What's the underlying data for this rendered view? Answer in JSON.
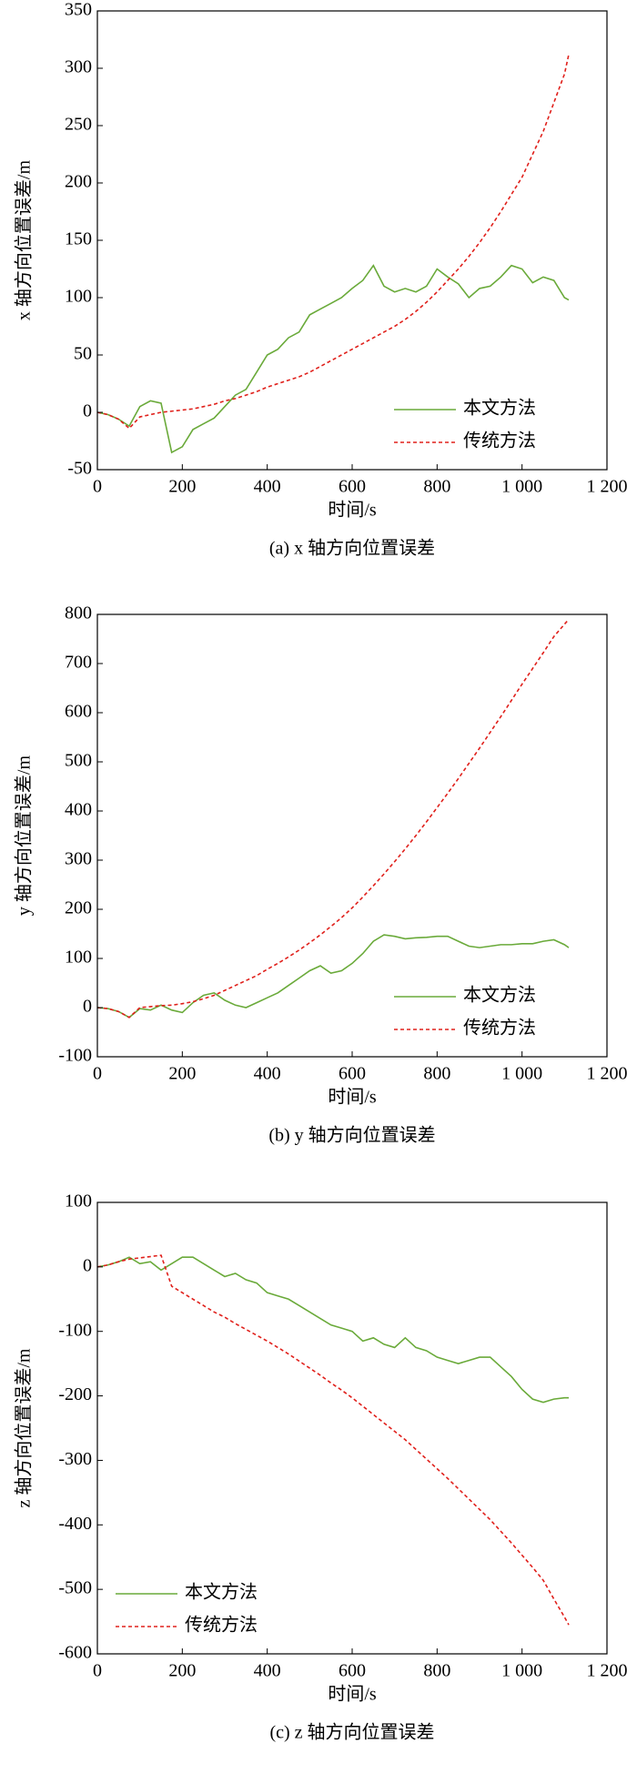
{
  "chart_data": [
    {
      "type": "line",
      "title": "(a) x 轴方向位置误差",
      "xlabel": "时间/s",
      "ylabel": "x 轴方向位置误差/m",
      "x": [
        0,
        25,
        50,
        75,
        100,
        125,
        150,
        175,
        200,
        225,
        250,
        275,
        300,
        325,
        350,
        375,
        400,
        425,
        450,
        475,
        500,
        525,
        550,
        575,
        600,
        625,
        650,
        675,
        700,
        725,
        750,
        775,
        800,
        825,
        850,
        875,
        900,
        925,
        950,
        975,
        1000,
        1025,
        1050,
        1075,
        1100,
        1110
      ],
      "series": [
        {
          "name": "本文方法",
          "color": "#6aaa3a",
          "line_style": "solid",
          "values": [
            0,
            -2,
            -6,
            -12,
            5,
            10,
            8,
            -35,
            -30,
            -15,
            -10,
            -5,
            5,
            15,
            20,
            35,
            50,
            55,
            65,
            70,
            85,
            90,
            95,
            100,
            108,
            115,
            128,
            110,
            105,
            108,
            105,
            110,
            125,
            118,
            112,
            100,
            108,
            110,
            118,
            128,
            125,
            113,
            118,
            115,
            100,
            98
          ]
        },
        {
          "name": "传统方法",
          "color": "#e0201b",
          "line_style": "dashed",
          "values": [
            0,
            -2,
            -6,
            -14,
            -4,
            -2,
            0,
            1,
            2,
            3,
            5,
            7,
            10,
            12,
            15,
            18,
            22,
            25,
            28,
            31,
            35,
            40,
            45,
            50,
            55,
            60,
            65,
            70,
            75,
            81,
            88,
            96,
            105,
            115,
            125,
            136,
            148,
            161,
            175,
            190,
            205,
            225,
            245,
            270,
            295,
            312
          ]
        }
      ],
      "xlim": [
        0,
        1200
      ],
      "xticks": [
        0,
        200,
        400,
        600,
        800,
        {
          "value": 1000,
          "label": "1 000"
        },
        {
          "value": 1200,
          "label": "1 200"
        }
      ],
      "ylim": [
        -50,
        350
      ],
      "yticks": [
        -50,
        0,
        50,
        100,
        150,
        200,
        250,
        300,
        350
      ],
      "legend": "lower right"
    },
    {
      "type": "line",
      "title": "(b) y 轴方向位置误差",
      "xlabel": "时间/s",
      "ylabel": "y 轴方向位置误差/m",
      "x": [
        0,
        25,
        50,
        75,
        100,
        125,
        150,
        175,
        200,
        225,
        250,
        275,
        300,
        325,
        350,
        375,
        400,
        425,
        450,
        475,
        500,
        525,
        550,
        575,
        600,
        625,
        650,
        675,
        700,
        725,
        750,
        775,
        800,
        825,
        850,
        875,
        900,
        925,
        950,
        975,
        1000,
        1025,
        1050,
        1075,
        1100,
        1110
      ],
      "series": [
        {
          "name": "本文方法",
          "color": "#6aaa3a",
          "line_style": "solid",
          "values": [
            0,
            -2,
            -8,
            -20,
            -2,
            -5,
            5,
            -5,
            -10,
            10,
            25,
            30,
            15,
            5,
            0,
            10,
            20,
            30,
            45,
            60,
            75,
            85,
            70,
            75,
            90,
            110,
            135,
            148,
            145,
            140,
            142,
            143,
            145,
            145,
            135,
            125,
            122,
            125,
            128,
            128,
            130,
            130,
            135,
            138,
            128,
            122
          ]
        },
        {
          "name": "传统方法",
          "color": "#e0201b",
          "line_style": "dashed",
          "values": [
            0,
            -2,
            -8,
            -20,
            0,
            2,
            4,
            5,
            8,
            12,
            18,
            25,
            35,
            45,
            55,
            65,
            78,
            90,
            103,
            117,
            132,
            148,
            165,
            183,
            203,
            225,
            248,
            272,
            297,
            323,
            350,
            378,
            407,
            436,
            466,
            497,
            528,
            560,
            592,
            625,
            658,
            690,
            722,
            755,
            780,
            790
          ]
        }
      ],
      "xlim": [
        0,
        1200
      ],
      "xticks": [
        0,
        200,
        400,
        600,
        800,
        {
          "value": 1000,
          "label": "1 000"
        },
        {
          "value": 1200,
          "label": "1 200"
        }
      ],
      "ylim": [
        -100,
        800
      ],
      "yticks": [
        -100,
        0,
        100,
        200,
        300,
        400,
        500,
        600,
        700,
        800
      ],
      "legend": "lower right"
    },
    {
      "type": "line",
      "title": "(c) z 轴方向位置误差",
      "xlabel": "时间/s",
      "ylabel": "z 轴方向位置误差/m",
      "x": [
        0,
        25,
        50,
        75,
        100,
        125,
        150,
        175,
        200,
        225,
        250,
        275,
        300,
        325,
        350,
        375,
        400,
        425,
        450,
        475,
        500,
        525,
        550,
        575,
        600,
        625,
        650,
        675,
        700,
        725,
        750,
        775,
        800,
        825,
        850,
        875,
        900,
        925,
        950,
        975,
        1000,
        1025,
        1050,
        1075,
        1100,
        1110
      ],
      "series": [
        {
          "name": "本文方法",
          "color": "#6aaa3a",
          "line_style": "solid",
          "values": [
            0,
            3,
            8,
            15,
            5,
            8,
            -5,
            5,
            15,
            15,
            5,
            -5,
            -15,
            -10,
            -20,
            -25,
            -40,
            -45,
            -50,
            -60,
            -70,
            -80,
            -90,
            -95,
            -100,
            -115,
            -110,
            -120,
            -125,
            -110,
            -125,
            -130,
            -140,
            -145,
            -150,
            -145,
            -140,
            -140,
            -155,
            -170,
            -190,
            -205,
            -210,
            -205,
            -203,
            -203
          ]
        },
        {
          "name": "传统方法",
          "color": "#e0201b",
          "line_style": "dashed",
          "values": [
            0,
            3,
            8,
            12,
            14,
            16,
            18,
            -30,
            -40,
            -50,
            -60,
            -70,
            -78,
            -88,
            -97,
            -106,
            -115,
            -125,
            -135,
            -146,
            -157,
            -168,
            -180,
            -191,
            -203,
            -216,
            -229,
            -242,
            -255,
            -268,
            -283,
            -298,
            -313,
            -328,
            -344,
            -360,
            -376,
            -392,
            -410,
            -428,
            -447,
            -466,
            -486,
            -515,
            -543,
            -555
          ]
        }
      ],
      "xlim": [
        0,
        1200
      ],
      "xticks": [
        0,
        200,
        400,
        600,
        800,
        {
          "value": 1000,
          "label": "1 000"
        },
        {
          "value": 1200,
          "label": "1 200"
        }
      ],
      "ylim": [
        -600,
        100
      ],
      "yticks": [
        -600,
        -500,
        -400,
        -300,
        -200,
        -100,
        0,
        100
      ],
      "legend": "lower left"
    }
  ]
}
